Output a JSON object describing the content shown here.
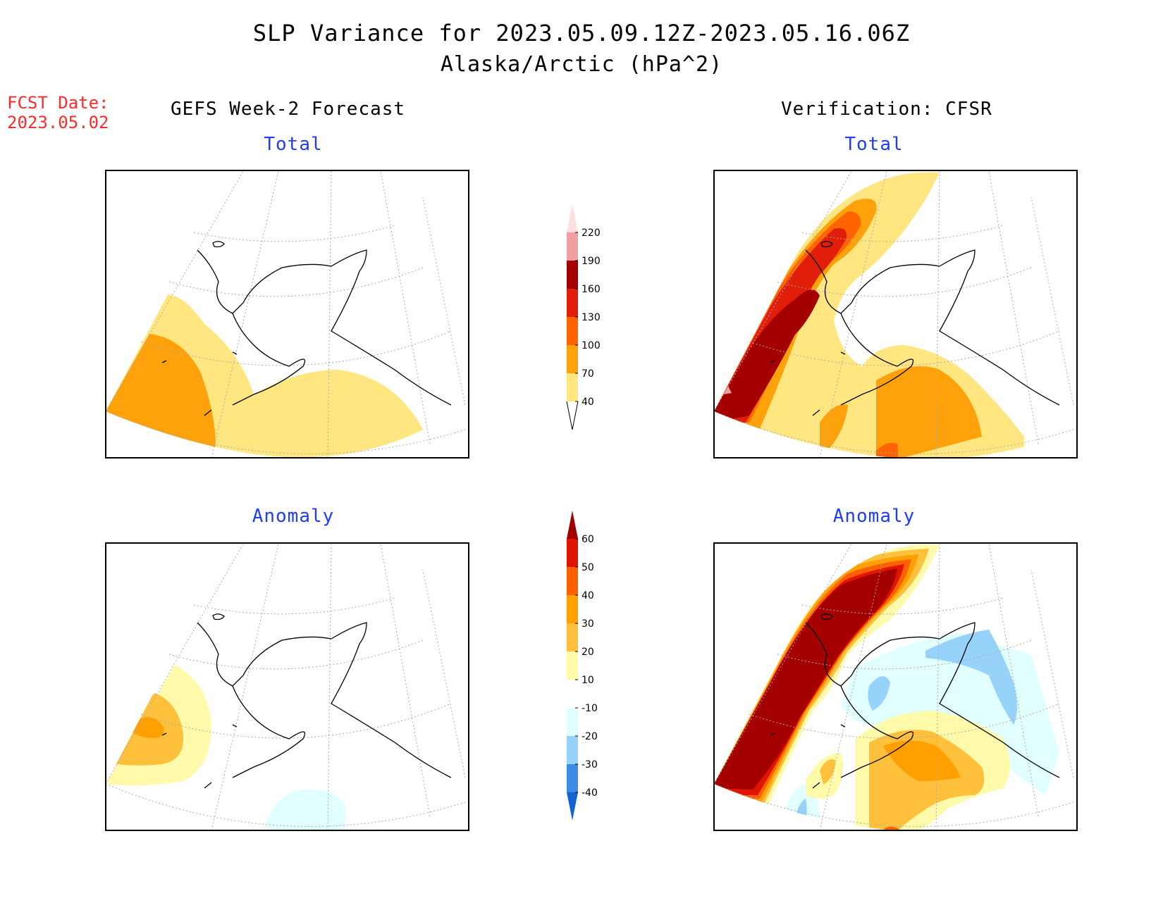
{
  "title": {
    "line1": "SLP Variance for 2023.05.09.12Z-2023.05.16.06Z",
    "line2": "Alaska/Arctic (hPa^2)"
  },
  "forecast_date": {
    "label": "FCST Date:",
    "value": "2023.05.02"
  },
  "columns": {
    "left": "GEFS Week-2 Forecast",
    "right": "Verification: CFSR"
  },
  "panels": [
    {
      "id": "fcst-total",
      "subtitle": "Total"
    },
    {
      "id": "verif-total",
      "subtitle": "Total"
    },
    {
      "id": "fcst-anomaly",
      "subtitle": "Anomaly"
    },
    {
      "id": "verif-anomaly",
      "subtitle": "Anomaly"
    }
  ],
  "colorbars": {
    "total": {
      "labels": [
        "40",
        "70",
        "100",
        "130",
        "160",
        "190",
        "220"
      ],
      "colors": [
        "#ffe680",
        "#ffa10a",
        "#ff6400",
        "#e01e0a",
        "#a50000",
        "#f0a0a0",
        "#ffe0e0"
      ]
    },
    "anomaly": {
      "labels": [
        "-40",
        "-30",
        "-20",
        "-10",
        "10",
        "20",
        "30",
        "40",
        "50",
        "60"
      ],
      "colors": [
        "#1463d2",
        "#3c8ce6",
        "#96d2fa",
        "#e1ffff",
        "#ffffff",
        "#fffaaa",
        "#ffc03c",
        "#ffa000",
        "#ff6000",
        "#e01400",
        "#a50000"
      ]
    }
  }
}
